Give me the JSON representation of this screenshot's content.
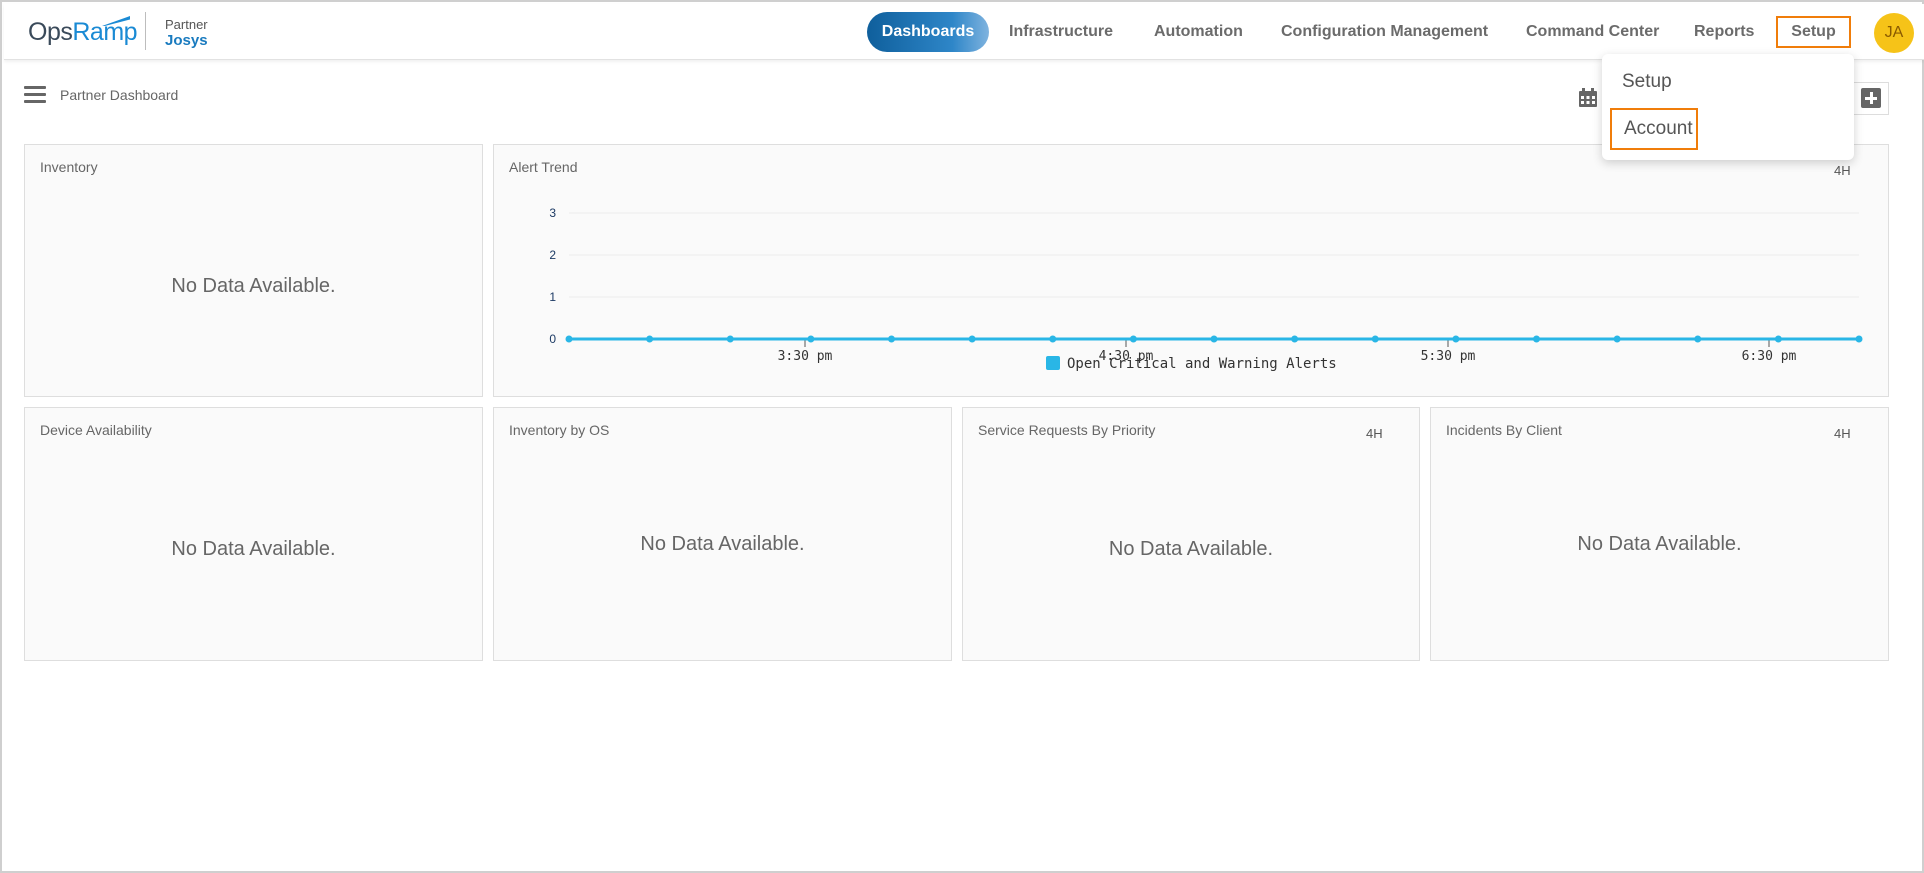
{
  "brand": {
    "logo_ops": "Ops",
    "logo_ramp": "Ramp",
    "partner_label": "Partner",
    "partner_name": "Josys"
  },
  "nav": {
    "items": [
      "Dashboards",
      "Infrastructure",
      "Automation",
      "Configuration Management",
      "Command Center",
      "Reports",
      "Setup"
    ],
    "active": "Dashboards"
  },
  "user": {
    "initials": "JA"
  },
  "page": {
    "title": "Partner Dashboard"
  },
  "dropdown": {
    "items": [
      "Setup",
      "Account"
    ]
  },
  "widgets": {
    "inventory": {
      "title": "Inventory",
      "empty": "No Data Available."
    },
    "alert_trend": {
      "title": "Alert Trend",
      "range": "4H"
    },
    "device_availability": {
      "title": "Device Availability",
      "empty": "No Data Available."
    },
    "inventory_by_os": {
      "title": "Inventory by OS",
      "empty": "No Data Available."
    },
    "service_requests": {
      "title": "Service Requests By Priority",
      "range": "4H",
      "empty": "No Data Available."
    },
    "incidents_by_client": {
      "title": "Incidents By Client",
      "range": "4H",
      "empty": "No Data Available."
    }
  },
  "colors": {
    "accent": "#1a8ad4",
    "series": "#29b6e6",
    "highlight": "#f07d0a",
    "avatar": "#f6c318"
  },
  "icons": {
    "menu": "hamburger-icon",
    "calendar": "calendar-icon",
    "add": "add-icon"
  },
  "chart_data": {
    "type": "line",
    "title": "Alert Trend",
    "x_ticks": [
      "3:30 pm",
      "4:30 pm",
      "5:30 pm",
      "6:30 pm"
    ],
    "y_ticks": [
      0,
      1,
      2,
      3
    ],
    "ylim": [
      0,
      3
    ],
    "series": [
      {
        "name": "Open Critical and Warning Alerts",
        "values": [
          0,
          0,
          0,
          0,
          0,
          0,
          0,
          0,
          0,
          0,
          0,
          0,
          0,
          0,
          0,
          0,
          0
        ]
      }
    ],
    "legend": "bottom-center",
    "grid": true
  }
}
